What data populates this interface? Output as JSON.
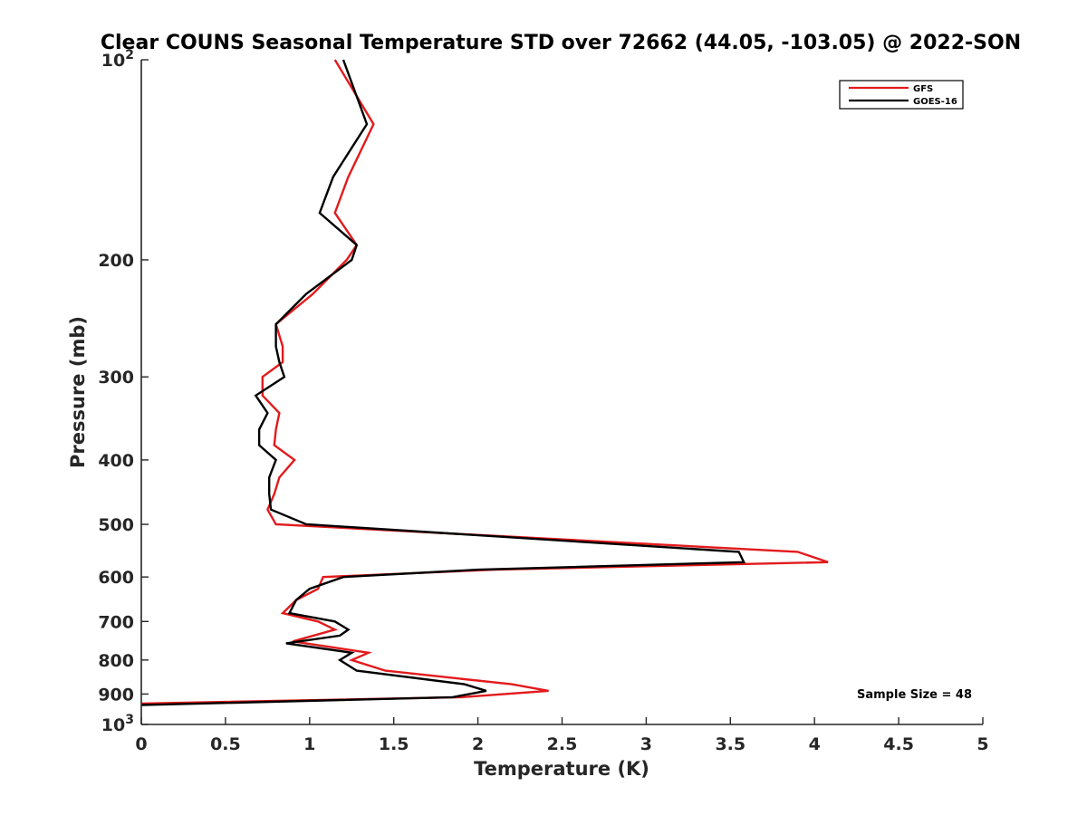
{
  "chart_data": {
    "type": "line",
    "title": "Clear COUNS Seasonal Temperature STD over 72662 (44.05, -103.05) @ 2022-SON",
    "xlabel": "Temperature (K)",
    "ylabel": "Pressure (mb)",
    "xlim": [
      0,
      5
    ],
    "ylim": [
      100,
      1000
    ],
    "yscale": "log",
    "yreversed": true,
    "xticks": [
      0,
      0.5,
      1,
      1.5,
      2,
      2.5,
      3,
      3.5,
      4,
      4.5,
      5
    ],
    "xtick_labels": [
      "0",
      "0.5",
      "1",
      "1.5",
      "2",
      "2.5",
      "3",
      "3.5",
      "4",
      "4.5",
      "5"
    ],
    "yticks": [
      100,
      200,
      300,
      400,
      500,
      600,
      700,
      800,
      900,
      1000
    ],
    "ytick_labels": [
      {
        "base": "10",
        "exp": "2"
      },
      {
        "base": "200",
        "exp": ""
      },
      {
        "base": "300",
        "exp": ""
      },
      {
        "base": "400",
        "exp": ""
      },
      {
        "base": "500",
        "exp": ""
      },
      {
        "base": "600",
        "exp": ""
      },
      {
        "base": "700",
        "exp": ""
      },
      {
        "base": "800",
        "exp": ""
      },
      {
        "base": "900",
        "exp": ""
      },
      {
        "base": "10",
        "exp": "3"
      }
    ],
    "legend_position": "top-right",
    "annotation": "Sample Size = 48",
    "series": [
      {
        "name": "GFS",
        "color": "#e31a1c",
        "points": [
          [
            1.15,
            100
          ],
          [
            1.38,
            125
          ],
          [
            1.23,
            150
          ],
          [
            1.15,
            170
          ],
          [
            1.28,
            190
          ],
          [
            1.22,
            200
          ],
          [
            1.02,
            225
          ],
          [
            0.8,
            250
          ],
          [
            0.84,
            270
          ],
          [
            0.84,
            285
          ],
          [
            0.72,
            300
          ],
          [
            0.72,
            320
          ],
          [
            0.82,
            340
          ],
          [
            0.8,
            360
          ],
          [
            0.79,
            380
          ],
          [
            0.91,
            400
          ],
          [
            0.82,
            425
          ],
          [
            0.79,
            450
          ],
          [
            0.75,
            475
          ],
          [
            0.8,
            500
          ],
          [
            3.9,
            550
          ],
          [
            4.08,
            570
          ],
          [
            2.1,
            585
          ],
          [
            1.08,
            600
          ],
          [
            1.05,
            625
          ],
          [
            0.92,
            650
          ],
          [
            0.84,
            680
          ],
          [
            1.05,
            700
          ],
          [
            1.15,
            720
          ],
          [
            0.9,
            750
          ],
          [
            1.35,
            780
          ],
          [
            1.25,
            800
          ],
          [
            1.45,
            830
          ],
          [
            2.2,
            870
          ],
          [
            2.42,
            890
          ],
          [
            1.9,
            910
          ],
          [
            0,
            930
          ]
        ]
      },
      {
        "name": "GOES-16",
        "color": "#000000",
        "points": [
          [
            1.2,
            100
          ],
          [
            1.34,
            125
          ],
          [
            1.14,
            150
          ],
          [
            1.06,
            170
          ],
          [
            1.28,
            190
          ],
          [
            1.25,
            200
          ],
          [
            0.98,
            225
          ],
          [
            0.8,
            250
          ],
          [
            0.8,
            270
          ],
          [
            0.82,
            285
          ],
          [
            0.85,
            300
          ],
          [
            0.68,
            320
          ],
          [
            0.75,
            340
          ],
          [
            0.7,
            360
          ],
          [
            0.7,
            380
          ],
          [
            0.8,
            400
          ],
          [
            0.76,
            425
          ],
          [
            0.76,
            450
          ],
          [
            0.77,
            475
          ],
          [
            0.98,
            500
          ],
          [
            3.55,
            550
          ],
          [
            3.58,
            570
          ],
          [
            2.0,
            585
          ],
          [
            1.2,
            600
          ],
          [
            1.0,
            625
          ],
          [
            0.92,
            650
          ],
          [
            0.88,
            680
          ],
          [
            1.15,
            700
          ],
          [
            1.23,
            720
          ],
          [
            1.18,
            735
          ],
          [
            0.86,
            755
          ],
          [
            1.25,
            780
          ],
          [
            1.18,
            800
          ],
          [
            1.28,
            830
          ],
          [
            1.92,
            870
          ],
          [
            2.05,
            890
          ],
          [
            1.85,
            910
          ],
          [
            0,
            935
          ]
        ]
      }
    ]
  }
}
